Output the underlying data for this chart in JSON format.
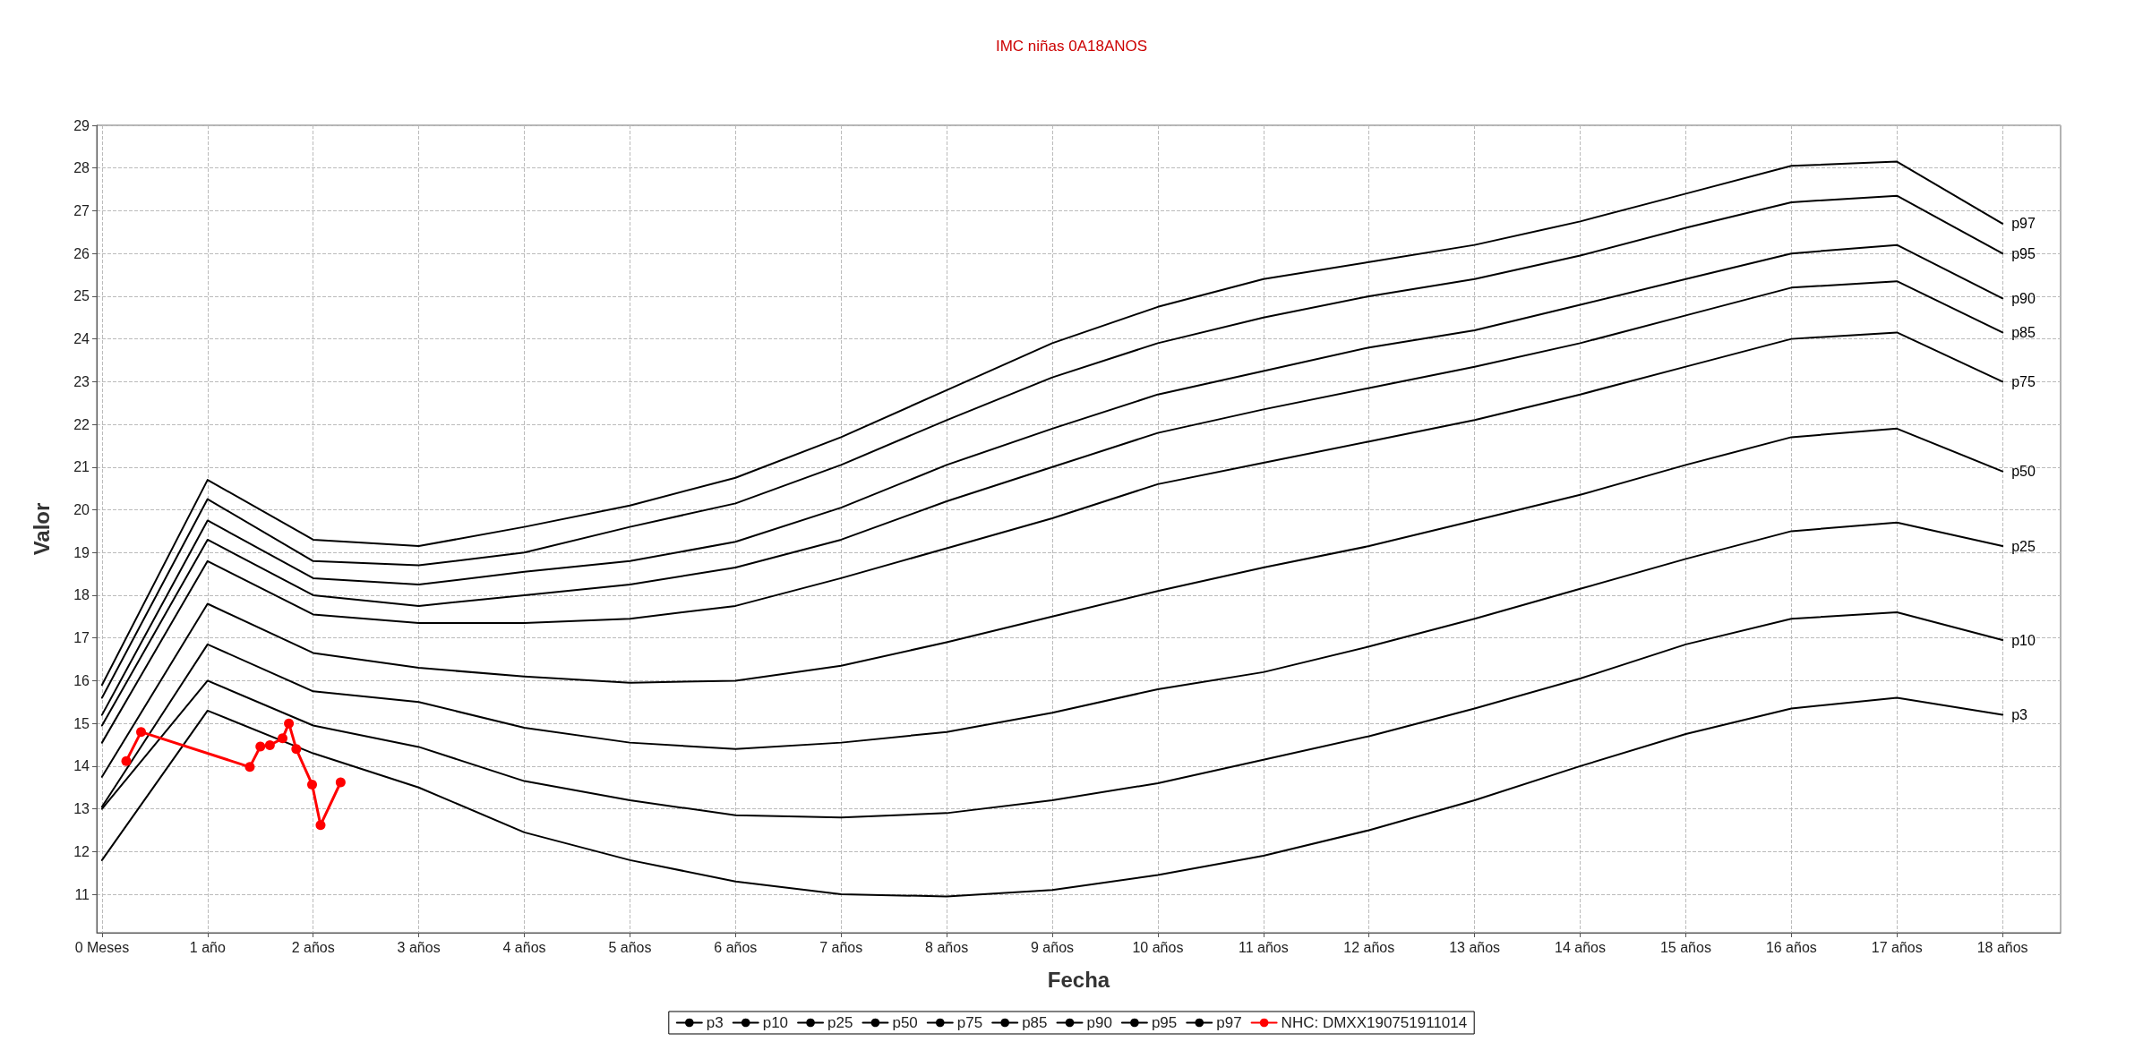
{
  "chart_data": {
    "type": "line",
    "title": "IMC niñas 0A18ANOS",
    "xlabel": "Fecha",
    "ylabel": "Valor",
    "x": [
      0,
      1,
      2,
      3,
      4,
      5,
      6,
      7,
      8,
      9,
      10,
      11,
      12,
      13,
      14,
      15,
      16,
      17,
      18
    ],
    "xlim": [
      -0.05,
      18.55
    ],
    "xticks": [
      {
        "value": 0,
        "label": "0 Meses"
      },
      {
        "value": 1,
        "label": "1 año"
      },
      {
        "value": 2,
        "label": "2 años"
      },
      {
        "value": 3,
        "label": "3 años"
      },
      {
        "value": 4,
        "label": "4 años"
      },
      {
        "value": 5,
        "label": "5 años"
      },
      {
        "value": 6,
        "label": "6 años"
      },
      {
        "value": 7,
        "label": "7 años"
      },
      {
        "value": 8,
        "label": "8 años"
      },
      {
        "value": 9,
        "label": "9 años"
      },
      {
        "value": 10,
        "label": "10 años"
      },
      {
        "value": 11,
        "label": "11 años"
      },
      {
        "value": 12,
        "label": "12 años"
      },
      {
        "value": 13,
        "label": "13 años"
      },
      {
        "value": 14,
        "label": "14 años"
      },
      {
        "value": 15,
        "label": "15 años"
      },
      {
        "value": 16,
        "label": "16 años"
      },
      {
        "value": 17,
        "label": "17 años"
      },
      {
        "value": 18,
        "label": "18 años"
      }
    ],
    "ylim": [
      10.1,
      29
    ],
    "yticks": [
      11,
      12,
      13,
      14,
      15,
      16,
      17,
      18,
      19,
      20,
      21,
      22,
      23,
      24,
      25,
      26,
      27,
      28,
      29
    ],
    "grid": true,
    "legend": "bottom",
    "marker": "none",
    "line_style": "solid",
    "series": [
      {
        "name": "p3",
        "color": "#000000",
        "values": [
          11.8,
          15.3,
          14.3,
          13.5,
          12.45,
          11.8,
          11.3,
          11.0,
          10.95,
          11.1,
          11.45,
          11.9,
          12.5,
          13.2,
          14.0,
          14.75,
          15.35,
          15.6,
          15.2
        ]
      },
      {
        "name": "p10",
        "color": "#000000",
        "values": [
          13.0,
          16.0,
          14.95,
          14.45,
          13.65,
          13.2,
          12.85,
          12.8,
          12.9,
          13.2,
          13.6,
          14.15,
          14.7,
          15.35,
          16.05,
          16.85,
          17.45,
          17.6,
          16.95
        ]
      },
      {
        "name": "p25",
        "color": "#000000",
        "values": [
          13.05,
          16.85,
          15.75,
          15.5,
          14.9,
          14.55,
          14.4,
          14.55,
          14.8,
          15.25,
          15.8,
          16.2,
          16.8,
          17.45,
          18.15,
          18.85,
          19.5,
          19.7,
          19.15
        ]
      },
      {
        "name": "p50",
        "color": "#000000",
        "values": [
          13.75,
          17.8,
          16.65,
          16.3,
          16.1,
          15.95,
          16.0,
          16.35,
          16.9,
          17.5,
          18.1,
          18.65,
          19.15,
          19.75,
          20.35,
          21.05,
          21.7,
          21.9,
          20.9
        ]
      },
      {
        "name": "p75",
        "color": "#000000",
        "values": [
          14.55,
          18.8,
          17.55,
          17.35,
          17.35,
          17.45,
          17.75,
          18.4,
          19.1,
          19.8,
          20.6,
          21.1,
          21.6,
          22.1,
          22.7,
          23.35,
          24.0,
          24.15,
          23.0
        ]
      },
      {
        "name": "p85",
        "color": "#000000",
        "values": [
          14.95,
          19.3,
          18.0,
          17.75,
          18.0,
          18.25,
          18.65,
          19.3,
          20.2,
          21.0,
          21.8,
          22.35,
          22.85,
          23.35,
          23.9,
          24.55,
          25.2,
          25.35,
          24.15
        ]
      },
      {
        "name": "p90",
        "color": "#000000",
        "values": [
          15.2,
          19.75,
          18.4,
          18.25,
          18.55,
          18.8,
          19.25,
          20.05,
          21.05,
          21.9,
          22.7,
          23.25,
          23.8,
          24.2,
          24.8,
          25.4,
          26.0,
          26.2,
          24.95
        ]
      },
      {
        "name": "p95",
        "color": "#000000",
        "values": [
          15.6,
          20.25,
          18.8,
          18.7,
          19.0,
          19.6,
          20.15,
          21.05,
          22.1,
          23.1,
          23.9,
          24.5,
          25.0,
          25.4,
          25.95,
          26.6,
          27.2,
          27.35,
          26.0
        ]
      },
      {
        "name": "p97",
        "color": "#000000",
        "values": [
          15.9,
          20.7,
          19.3,
          19.15,
          19.6,
          20.1,
          20.75,
          21.7,
          22.8,
          23.9,
          24.75,
          25.4,
          25.8,
          26.2,
          26.75,
          27.4,
          28.05,
          28.15,
          26.7
        ]
      },
      {
        "name": "NHC: DMXX190751911014",
        "color": "#ff0000",
        "marker": "circle",
        "x": [
          0.23,
          0.37,
          1.4,
          1.5,
          1.59,
          1.71,
          1.77,
          1.84,
          1.99,
          2.07,
          2.26
        ],
        "values": [
          14.12,
          14.8,
          13.98,
          14.46,
          14.49,
          14.65,
          15.0,
          14.4,
          13.57,
          12.62,
          13.62
        ]
      }
    ]
  }
}
